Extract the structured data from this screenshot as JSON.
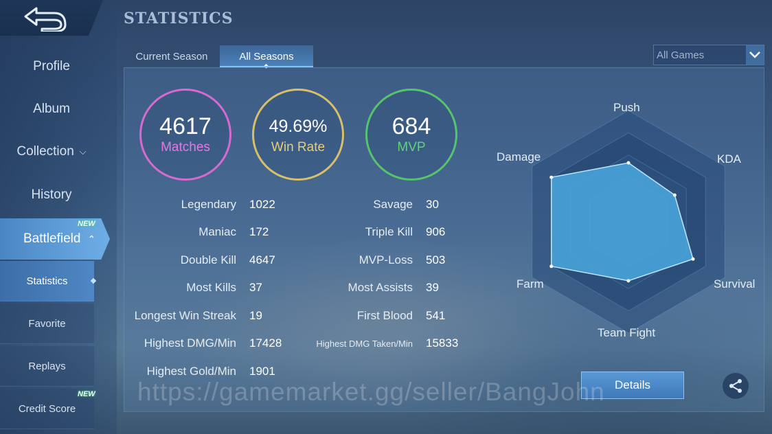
{
  "header": {
    "title": "STATISTICS"
  },
  "sidebar": {
    "items": [
      {
        "label": "Profile"
      },
      {
        "label": "Album"
      },
      {
        "label": "Collection"
      },
      {
        "label": "History"
      },
      {
        "label": "Battlefield",
        "badge": "NEW"
      }
    ],
    "sub_items": [
      {
        "label": "Statistics"
      },
      {
        "label": "Favorite"
      },
      {
        "label": "Replays"
      },
      {
        "label": "Credit Score",
        "badge": "NEW"
      }
    ]
  },
  "tabs": [
    {
      "label": "Current Season"
    },
    {
      "label": "All Seasons"
    }
  ],
  "filter": {
    "selected": "All Games"
  },
  "summary": {
    "matches": {
      "value": "4617",
      "label": "Matches"
    },
    "win_rate": {
      "value": "49.69%",
      "label": "Win Rate"
    },
    "mvp": {
      "value": "684",
      "label": "MVP"
    }
  },
  "stats_left": [
    {
      "label": "Legendary",
      "value": "1022"
    },
    {
      "label": "Maniac",
      "value": "172"
    },
    {
      "label": "Double Kill",
      "value": "4647"
    },
    {
      "label": "Most Kills",
      "value": "37"
    },
    {
      "label": "Longest Win Streak",
      "value": "19"
    },
    {
      "label": "Highest DMG/Min",
      "value": "17428"
    },
    {
      "label": "Highest Gold/Min",
      "value": "1901"
    }
  ],
  "stats_right": [
    {
      "label": "Savage",
      "value": "30"
    },
    {
      "label": "Triple Kill",
      "value": "906"
    },
    {
      "label": "MVP-Loss",
      "value": "503"
    },
    {
      "label": "Most Assists",
      "value": "39"
    },
    {
      "label": "First Blood",
      "value": "541"
    },
    {
      "label": "Highest DMG Taken/Min",
      "value": "15833"
    }
  ],
  "radar": {
    "axes": [
      "Push",
      "KDA",
      "Survival",
      "Team Fight",
      "Farm",
      "Damage"
    ],
    "values": [
      0.53,
      0.48,
      0.67,
      0.53,
      0.8,
      0.8
    ]
  },
  "buttons": {
    "details": "Details"
  },
  "watermark": "https://gamemarket.gg/seller/BangJohn",
  "icons": {
    "back": "back-arrow-icon",
    "share": "share-icon",
    "dropdown": "chevron-down-icon"
  }
}
